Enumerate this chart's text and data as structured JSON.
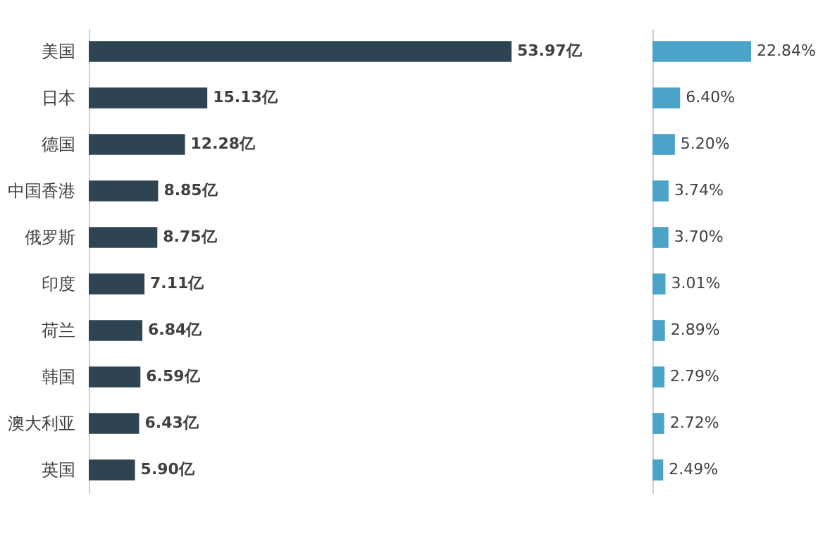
{
  "chart_data": [
    {
      "type": "bar",
      "orientation": "horizontal",
      "categories": [
        "美国",
        "日本",
        "德国",
        "中国香港",
        "俄罗斯",
        "印度",
        "荷兰",
        "韩国",
        "澳大利亚",
        "英国"
      ],
      "series": [
        {
          "color": "#2e4453",
          "values": [
            53.97,
            15.13,
            12.28,
            8.85,
            8.75,
            7.11,
            6.84,
            6.59,
            6.43,
            5.9
          ],
          "value_labels": [
            "53.97亿",
            "15.13亿",
            "12.28亿",
            "8.85亿",
            "8.75亿",
            "7.11亿",
            "6.84亿",
            "6.59亿",
            "6.43亿",
            "5.90亿"
          ]
        }
      ],
      "tick_labels": "y"
    },
    {
      "type": "bar",
      "orientation": "horizontal",
      "categories": [
        null,
        null,
        null,
        null,
        null,
        null,
        null,
        null,
        null,
        null
      ],
      "series": [
        {
          "color": "#4ba3c7",
          "values": [
            22.84,
            6.4,
            5.2,
            3.74,
            3.7,
            3.01,
            2.89,
            2.79,
            2.72,
            2.49
          ],
          "value_labels": [
            "22.84%",
            "6.40%",
            "5.20%",
            "3.74%",
            "3.70%",
            "3.01%",
            "2.89%",
            "2.79%",
            "2.72%",
            "2.49%"
          ]
        }
      ],
      "tick_labels": false
    }
  ]
}
